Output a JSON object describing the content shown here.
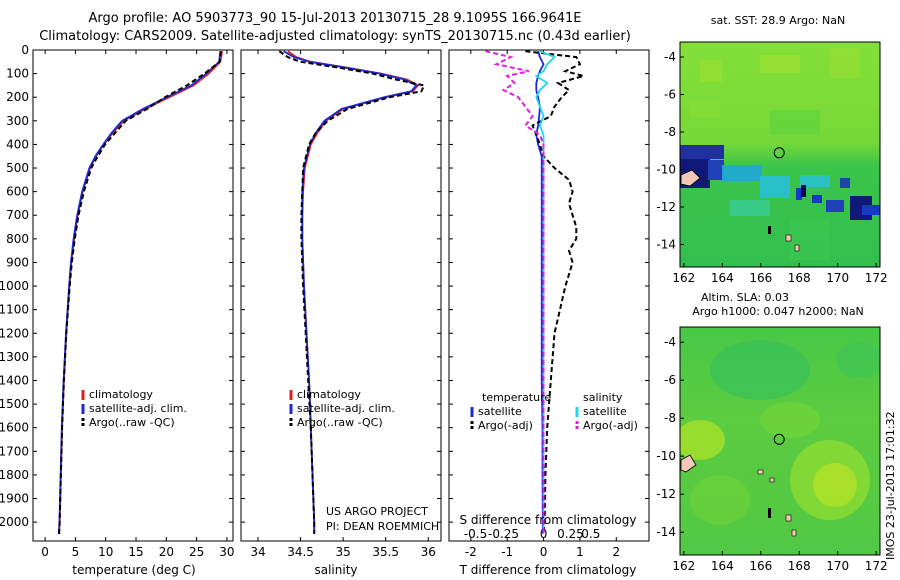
{
  "header": {
    "line1": "Argo profile: AO 5903773_90 15-Jul-2013 20130715_28 9.1095S 166.9641E",
    "line2": "Climatology: CARS2009. Satellite-adjusted climatology: synTS_20130715.nc (0.43d earlier)"
  },
  "colors": {
    "climatology": "#dd2222",
    "satellite": "#1a2ad8",
    "argo": "#000000",
    "s_satellite": "#20d8e8",
    "s_argo": "#e020e0"
  },
  "chart_data": [
    {
      "type": "line",
      "name": "temperature-profile",
      "xlabel": "temperature (deg C)",
      "ylabel": "",
      "xlim": [
        -2,
        31
      ],
      "ylim": [
        2080,
        0
      ],
      "xticks": [
        "0",
        "5",
        "10",
        "15",
        "20",
        "25",
        "30"
      ],
      "xtick_values": [
        0,
        5,
        10,
        15,
        20,
        25,
        30
      ],
      "yticks": [
        "0",
        "100",
        "200",
        "300",
        "400",
        "500",
        "600",
        "700",
        "800",
        "900",
        "1000",
        "1100",
        "1200",
        "1300",
        "1400",
        "1500",
        "1600",
        "1700",
        "1800",
        "1900",
        "2000"
      ],
      "ytick_values": [
        0,
        100,
        200,
        300,
        400,
        500,
        600,
        700,
        800,
        900,
        1000,
        1100,
        1200,
        1300,
        1400,
        1500,
        1600,
        1700,
        1800,
        1900,
        2000
      ],
      "depth": [
        5,
        50,
        100,
        150,
        200,
        250,
        300,
        350,
        400,
        450,
        500,
        600,
        700,
        800,
        900,
        1000,
        1200,
        1400,
        1600,
        1800,
        2000,
        2050
      ],
      "series": [
        {
          "name": "climatology",
          "values": [
            29.2,
            28.9,
            27.0,
            24.5,
            20.5,
            16.5,
            13.0,
            11.2,
            9.7,
            8.4,
            7.4,
            6.2,
            5.4,
            4.8,
            4.3,
            4.0,
            3.5,
            3.1,
            2.8,
            2.6,
            2.4,
            2.3
          ]
        },
        {
          "name": "satellite-adj. clim.",
          "values": [
            28.9,
            28.7,
            26.6,
            24.1,
            20.1,
            16.1,
            12.7,
            11.0,
            9.6,
            8.3,
            7.3,
            6.1,
            5.3,
            4.7,
            4.25,
            3.95,
            3.45,
            3.05,
            2.75,
            2.55,
            2.35,
            2.25
          ]
        },
        {
          "name": "Argo(..raw -QC)",
          "values": [
            29.0,
            28.8,
            26.3,
            23.4,
            19.8,
            16.8,
            13.3,
            11.6,
            9.9,
            8.7,
            7.6,
            6.4,
            5.5,
            4.9,
            4.4,
            4.05,
            3.5,
            3.1,
            2.8,
            2.6,
            2.4,
            2.3
          ]
        }
      ],
      "legend": [
        "climatology",
        "satellite-adj. clim.",
        "Argo(..raw -QC)"
      ]
    },
    {
      "type": "line",
      "name": "salinity-profile",
      "xlabel": "salinity",
      "xlim": [
        33.8,
        36.15
      ],
      "ylim": [
        2080,
        0
      ],
      "xticks": [
        "34",
        "34.5",
        "35",
        "35.5",
        "36"
      ],
      "xtick_values": [
        34,
        34.5,
        35,
        35.5,
        36
      ],
      "depth": [
        5,
        30,
        50,
        75,
        100,
        125,
        150,
        175,
        200,
        250,
        300,
        350,
        400,
        500,
        600,
        700,
        800,
        1000,
        1200,
        1400,
        1600,
        1800,
        2000,
        2050
      ],
      "series": [
        {
          "name": "climatology",
          "values": [
            34.35,
            34.45,
            34.62,
            35.05,
            35.45,
            35.75,
            35.88,
            35.82,
            35.5,
            35.0,
            34.8,
            34.7,
            34.62,
            34.55,
            34.53,
            34.52,
            34.52,
            34.54,
            34.57,
            34.6,
            34.62,
            34.64,
            34.66,
            34.66
          ]
        },
        {
          "name": "satellite-adj. clim.",
          "values": [
            34.3,
            34.42,
            34.6,
            35.03,
            35.43,
            35.72,
            35.86,
            35.8,
            35.48,
            34.98,
            34.78,
            34.68,
            34.61,
            34.54,
            34.52,
            34.52,
            34.52,
            34.54,
            34.57,
            34.6,
            34.62,
            34.64,
            34.66,
            34.66
          ]
        },
        {
          "name": "Argo(..raw -QC)",
          "values": [
            34.25,
            34.35,
            34.5,
            34.95,
            35.35,
            35.62,
            35.95,
            35.92,
            35.55,
            35.05,
            34.82,
            34.68,
            34.6,
            34.53,
            34.52,
            34.51,
            34.51,
            34.53,
            34.56,
            34.59,
            34.62,
            34.64,
            34.66,
            34.66
          ]
        }
      ],
      "legend": [
        "climatology",
        "satellite-adj. clim.",
        "Argo(..raw -QC)"
      ]
    },
    {
      "type": "line",
      "name": "difference-profile",
      "xlabel": "T difference from climatology",
      "xlabel_top": "S difference from climatology",
      "xlim": [
        -2.6,
        2.9
      ],
      "ylim": [
        2080,
        0
      ],
      "xticks": [
        "-2",
        "-1",
        "0",
        "1",
        "2"
      ],
      "xtick_values": [
        -2,
        -1,
        0,
        1,
        2
      ],
      "s_ticks": [
        "-0.5",
        "-0.25",
        "0",
        "0.25",
        "0.5"
      ],
      "s_tick_positions": [
        -1.87,
        -1.1,
        0,
        0.74,
        1.3
      ],
      "depth": [
        5,
        30,
        60,
        90,
        110,
        140,
        170,
        200,
        240,
        280,
        320,
        360,
        400,
        450,
        500,
        550,
        600,
        650,
        700,
        750,
        800,
        850,
        900,
        1000,
        1200,
        1400,
        1600,
        1800,
        2000,
        2050
      ],
      "series": [
        {
          "name": "temperature satellite",
          "values": [
            -0.15,
            -0.1,
            0.0,
            -0.1,
            -0.15,
            -0.2,
            -0.2,
            -0.15,
            -0.1,
            -0.12,
            -0.15,
            -0.2,
            -0.15,
            -0.05,
            -0.05,
            -0.05,
            -0.05,
            -0.05,
            -0.05,
            -0.05,
            -0.05,
            -0.05,
            -0.05,
            -0.05,
            -0.05,
            -0.05,
            -0.03,
            -0.03,
            -0.02,
            -0.02
          ]
        },
        {
          "name": "temperature Argo(-adj)",
          "values": [
            -0.5,
            0.9,
            1.0,
            0.6,
            1.1,
            0.4,
            0.7,
            0.5,
            0.3,
            0.2,
            -0.3,
            -0.2,
            -0.1,
            0.0,
            0.3,
            0.7,
            0.8,
            0.7,
            0.8,
            0.9,
            0.9,
            0.7,
            0.8,
            0.6,
            0.3,
            0.2,
            0.1,
            0.05,
            0.03,
            0.0
          ]
        },
        {
          "name": "salinity satellite",
          "values": [
            -0.1,
            0.3,
            0.1,
            0.0,
            -0.2,
            0.1,
            -0.1,
            -0.2,
            -0.1,
            0.0,
            -0.1,
            0.0,
            0.0,
            0.0,
            0.0,
            0.0,
            0.0,
            0.0,
            0.0,
            0.0,
            0.0,
            0.0,
            0.0,
            0.0,
            0.0,
            0.0,
            0.0,
            0.0,
            0.0,
            0.0
          ]
        },
        {
          "name": "salinity Argo(-adj)",
          "values": [
            -1.6,
            -0.9,
            -1.3,
            -0.4,
            -1.0,
            -0.8,
            -1.1,
            -0.7,
            -0.5,
            -0.3,
            -0.5,
            -0.1,
            0.0,
            0.0,
            0.0,
            0.0,
            0.0,
            0.0,
            0.0,
            0.0,
            0.0,
            0.0,
            0.0,
            0.0,
            0.0,
            0.0,
            0.0,
            0.0,
            0.0,
            0.0
          ]
        }
      ],
      "legend_temperature_title": "temperature",
      "legend_salinity_title": "salinity",
      "legend_temperature": [
        "satellite",
        "Argo(-adj)"
      ],
      "legend_salinity": [
        "satellite",
        "Argo(-adj)"
      ]
    },
    {
      "type": "heatmap",
      "name": "sst-map",
      "title": "sat. SST: 28.9 Argo: NaN",
      "xlim": [
        161.8,
        172.2
      ],
      "ylim": [
        -15.2,
        -3.2
      ],
      "xticks": [
        "162",
        "164",
        "166",
        "168",
        "170",
        "172"
      ],
      "xtick_values": [
        162,
        164,
        166,
        168,
        170,
        172
      ],
      "yticks": [
        "-4",
        "-6",
        "-8",
        "-10",
        "-12",
        "-14"
      ],
      "ytick_values": [
        -4,
        -6,
        -8,
        -10,
        -12,
        -14
      ],
      "argo_position": [
        166.96,
        -9.11
      ]
    },
    {
      "type": "heatmap",
      "name": "sla-map",
      "title_line1": "Altim. SLA: 0.03",
      "title_line2": "Argo h1000: 0.047 h2000: NaN",
      "xlim": [
        161.8,
        172.2
      ],
      "ylim": [
        -15.2,
        -3.2
      ],
      "xticks": [
        "162",
        "164",
        "166",
        "168",
        "170",
        "172"
      ],
      "xtick_values": [
        162,
        164,
        166,
        168,
        170,
        172
      ],
      "yticks": [
        "-4",
        "-6",
        "-8",
        "-10",
        "-12",
        "-14"
      ],
      "ytick_values": [
        -4,
        -6,
        -8,
        -10,
        -12,
        -14
      ],
      "argo_position": [
        166.96,
        -9.11
      ]
    }
  ],
  "annotations": {
    "project_line1": "US ARGO PROJECT",
    "project_line2": "PI: DEAN ROEMMICH",
    "stamp": "IMOS 23-Jul-2013 17:01:32"
  }
}
